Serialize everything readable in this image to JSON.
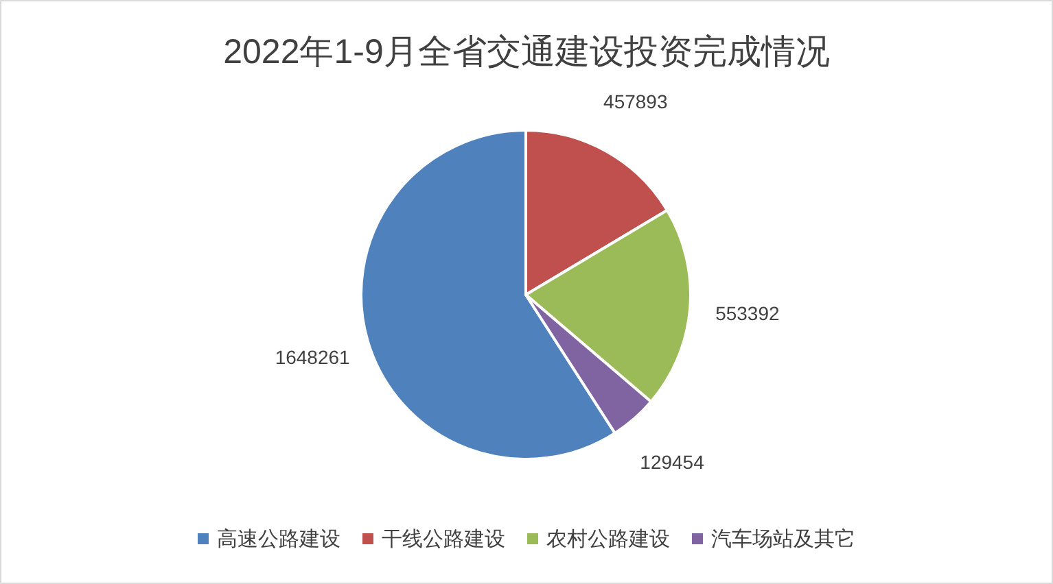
{
  "chart_data": {
    "type": "pie",
    "title": "2022年1-9月全省交通建设投资完成情况",
    "categories": [
      "高速公路建设",
      "干线公路建设",
      "农村公路建设",
      "汽车场站及其它"
    ],
    "values": [
      1648261,
      457893,
      553392,
      129454
    ],
    "colors": [
      "#4f81bd",
      "#c0504d",
      "#9bbb59",
      "#8064a2"
    ],
    "data_labels": true,
    "legend": "bottom"
  }
}
